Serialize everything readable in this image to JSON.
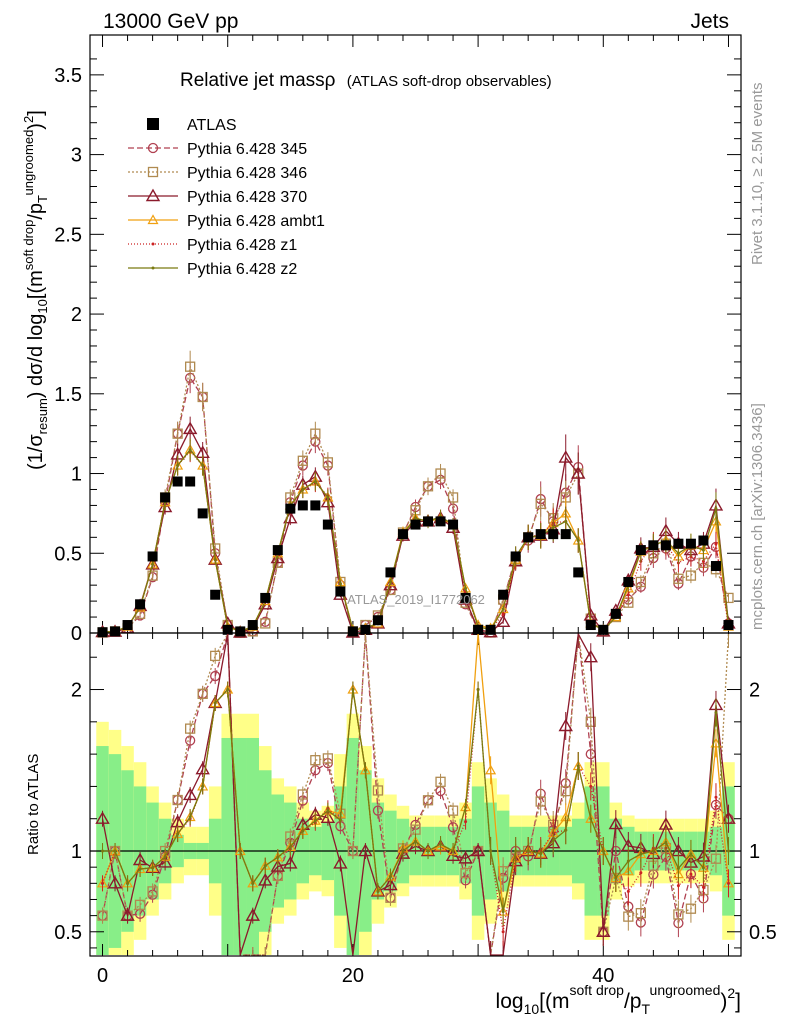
{
  "header": {
    "left": "13000 GeV pp",
    "right": "Jets"
  },
  "side": {
    "rivet": "Rivet 3.1.10, ≥ 2.5M events",
    "mcplots": "mcplots.cern.ch [arXiv:1306.3436]"
  },
  "watermark": "ATLAS_2019_I1772062",
  "chart_data": {
    "type": "line",
    "title": "Relative jet massρ",
    "subtitle": "(ATLAS soft-drop observables)",
    "xlabel": "log10[(m^soft drop / pT^ungroomed)^2]",
    "ylabel": "(1/σresum) dσ/d log10[(m^soft drop / pT^ungroomed)^2]",
    "ratio_ylabel": "Ratio to ATLAS",
    "xlim": [
      -1,
      51
    ],
    "ylim": [
      0,
      3.75
    ],
    "ratio_ylim": [
      0.35,
      2.35
    ],
    "x_ticks": [
      0,
      20,
      40
    ],
    "y_ticks": [
      0,
      0.5,
      1,
      1.5,
      2,
      2.5,
      3,
      3.5
    ],
    "ratio_ticks": [
      0.5,
      1,
      2
    ],
    "x": [
      0,
      1,
      2,
      3,
      4,
      5,
      6,
      7,
      8,
      9,
      10,
      11,
      12,
      13,
      14,
      15,
      16,
      17,
      18,
      19,
      20,
      21,
      22,
      23,
      24,
      25,
      26,
      27,
      28,
      29,
      30,
      31,
      32,
      33,
      34,
      35,
      36,
      37,
      38,
      39,
      40,
      41,
      42,
      43,
      44,
      45,
      46,
      47,
      48,
      49,
      50
    ],
    "reference": {
      "name": "ATLAS",
      "values": [
        0.005,
        0.01,
        0.05,
        0.18,
        0.48,
        0.85,
        0.95,
        0.95,
        0.75,
        0.24,
        0.02,
        0.01,
        0.05,
        0.22,
        0.52,
        0.78,
        0.8,
        0.8,
        0.68,
        0.26,
        0.01,
        0.02,
        0.08,
        0.38,
        0.62,
        0.68,
        0.7,
        0.7,
        0.68,
        0.22,
        0.02,
        0.02,
        0.24,
        0.48,
        0.6,
        0.62,
        0.62,
        0.62,
        0.38,
        0.05,
        0.02,
        0.12,
        0.32,
        0.52,
        0.55,
        0.55,
        0.56,
        0.56,
        0.58,
        0.42,
        0.05
      ]
    },
    "series": [
      {
        "name": "Pythia 6.428 345",
        "color": "#b04050",
        "marker": "circle",
        "dash": "6,3",
        "values": [
          0.003,
          0.01,
          0.03,
          0.11,
          0.35,
          0.82,
          1.25,
          1.6,
          1.48,
          0.5,
          0.05,
          0.002,
          0.01,
          0.07,
          0.44,
          0.82,
          1.05,
          1.2,
          1.05,
          0.3,
          0.01,
          0.05,
          0.1,
          0.27,
          0.62,
          0.79,
          0.92,
          0.96,
          0.78,
          0.18,
          0.02,
          0.003,
          0.2,
          0.48,
          0.58,
          0.84,
          0.7,
          0.88,
          1.04,
          0.08,
          0.01,
          0.12,
          0.21,
          0.29,
          0.47,
          0.53,
          0.31,
          0.48,
          0.41,
          0.54,
          0.06
        ]
      },
      {
        "name": "Pythia 6.428 346",
        "color": "#b08a50",
        "marker": "square",
        "dash": "2,2",
        "values": [
          0.003,
          0.01,
          0.03,
          0.12,
          0.36,
          0.85,
          1.25,
          1.67,
          1.48,
          0.53,
          0.05,
          0.002,
          0.01,
          0.06,
          0.44,
          0.85,
          1.08,
          1.25,
          1.07,
          0.32,
          0.01,
          0.05,
          0.11,
          0.27,
          0.63,
          0.77,
          0.92,
          1.0,
          0.85,
          0.19,
          0.02,
          0.003,
          0.21,
          0.46,
          0.6,
          0.81,
          0.72,
          0.85,
          1.0,
          0.09,
          0.01,
          0.1,
          0.19,
          0.32,
          0.5,
          0.56,
          0.34,
          0.36,
          0.44,
          0.4,
          0.22
        ]
      },
      {
        "name": "Pythia 6.428 370",
        "color": "#8b1a2b",
        "marker": "triangle",
        "dash": "",
        "values": [
          0.006,
          0.008,
          0.03,
          0.17,
          0.43,
          0.79,
          1.12,
          1.28,
          1.13,
          0.46,
          0.06,
          0.003,
          0.03,
          0.18,
          0.47,
          0.72,
          0.93,
          0.98,
          0.82,
          0.24,
          0.003,
          0.02,
          0.06,
          0.3,
          0.61,
          0.7,
          0.7,
          0.72,
          0.66,
          0.21,
          0.02,
          0.005,
          0.07,
          0.45,
          0.6,
          0.61,
          0.65,
          1.1,
          1.0,
          0.11,
          0.01,
          0.14,
          0.33,
          0.53,
          0.54,
          0.64,
          0.56,
          0.52,
          0.56,
          0.8,
          0.06
        ]
      },
      {
        "name": "Pythia 6.428 ambt1",
        "color": "#f0a010",
        "marker": "triangle-open",
        "dash": "",
        "values": [
          0.004,
          0.01,
          0.04,
          0.16,
          0.43,
          0.82,
          1.05,
          1.15,
          1.05,
          0.46,
          0.04,
          0.01,
          0.04,
          0.2,
          0.5,
          0.8,
          0.9,
          0.95,
          0.85,
          0.32,
          0.02,
          0.03,
          0.06,
          0.32,
          0.63,
          0.72,
          0.7,
          0.72,
          0.68,
          0.28,
          0.05,
          0.03,
          0.15,
          0.46,
          0.6,
          0.61,
          0.69,
          0.75,
          0.58,
          0.06,
          0.02,
          0.1,
          0.28,
          0.51,
          0.55,
          0.58,
          0.48,
          0.55,
          0.52,
          0.7,
          0.04
        ]
      },
      {
        "name": "Pythia 6.428 z1",
        "color": "#cc2222",
        "marker": "dot",
        "dash": "1,2",
        "values": [
          0.004,
          0.01,
          0.04,
          0.16,
          0.43,
          0.82,
          1.05,
          1.14,
          1.05,
          0.46,
          0.04,
          0.01,
          0.04,
          0.2,
          0.5,
          0.79,
          0.9,
          0.94,
          0.86,
          0.31,
          0.02,
          0.03,
          0.06,
          0.32,
          0.62,
          0.72,
          0.7,
          0.73,
          0.68,
          0.26,
          0.04,
          0.02,
          0.12,
          0.46,
          0.6,
          0.62,
          0.69,
          0.7,
          0.58,
          0.07,
          0.02,
          0.1,
          0.24,
          0.45,
          0.56,
          0.56,
          0.44,
          0.48,
          0.45,
          0.56,
          0.04
        ]
      },
      {
        "name": "Pythia 6.428 z2",
        "color": "#7a7a10",
        "marker": "dot",
        "dash": "",
        "values": [
          0.005,
          0.01,
          0.04,
          0.16,
          0.43,
          0.82,
          1.05,
          1.15,
          1.05,
          0.46,
          0.04,
          0.01,
          0.04,
          0.2,
          0.5,
          0.8,
          0.9,
          0.95,
          0.85,
          0.31,
          0.02,
          0.03,
          0.06,
          0.32,
          0.62,
          0.72,
          0.7,
          0.73,
          0.68,
          0.28,
          0.04,
          0.02,
          0.15,
          0.48,
          0.6,
          0.61,
          0.66,
          0.7,
          0.58,
          0.06,
          0.02,
          0.1,
          0.3,
          0.51,
          0.55,
          0.58,
          0.5,
          0.55,
          0.52,
          0.78,
          0.05
        ]
      }
    ],
    "ratio_band": {
      "inner": [
        0.35,
        0.4,
        0.5,
        0.6,
        0.7,
        0.8,
        0.9,
        0.95,
        0.95,
        0.8,
        0.3,
        0.3,
        0.3,
        0.5,
        0.65,
        0.7,
        0.8,
        0.85,
        0.82,
        0.6,
        0.3,
        0.5,
        0.7,
        0.75,
        0.8,
        0.85,
        0.85,
        0.85,
        0.85,
        0.8,
        0.6,
        0.7,
        0.75,
        0.85,
        0.85,
        0.85,
        0.85,
        0.85,
        0.8,
        0.6,
        0.6,
        0.8,
        0.85,
        0.88,
        0.88,
        0.88,
        0.88,
        0.88,
        0.88,
        0.85,
        0.6
      ],
      "outer": [
        0.2,
        0.25,
        0.35,
        0.45,
        0.6,
        0.7,
        0.8,
        0.85,
        0.85,
        0.6,
        0.15,
        0.15,
        0.15,
        0.35,
        0.55,
        0.6,
        0.7,
        0.75,
        0.72,
        0.4,
        0.15,
        0.35,
        0.55,
        0.65,
        0.72,
        0.78,
        0.78,
        0.78,
        0.78,
        0.7,
        0.45,
        0.55,
        0.65,
        0.78,
        0.78,
        0.78,
        0.78,
        0.78,
        0.7,
        0.45,
        0.45,
        0.7,
        0.78,
        0.8,
        0.8,
        0.8,
        0.8,
        0.8,
        0.8,
        0.75,
        0.45
      ]
    }
  }
}
